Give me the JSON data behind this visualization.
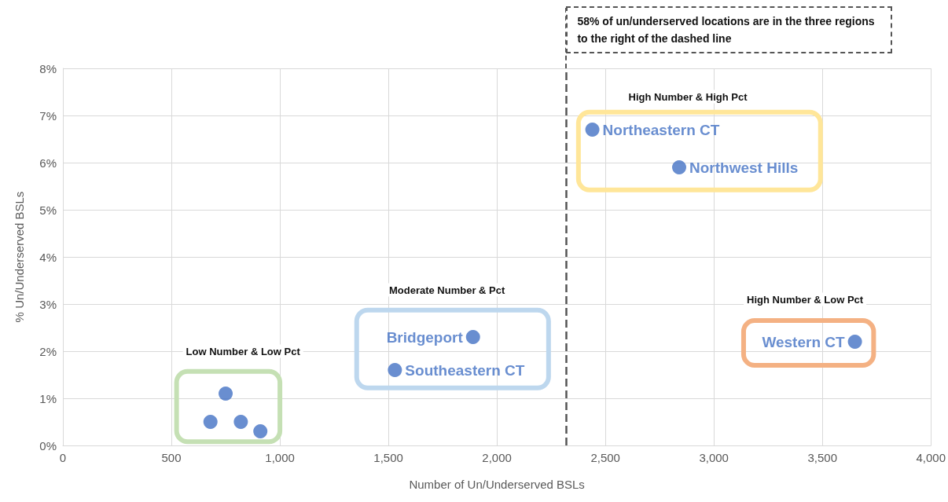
{
  "chart_data": {
    "type": "scatter",
    "xlabel": "Number of Un/Underserved BSLs",
    "ylabel": "% Un/Underserved BSLs",
    "series": [
      {
        "name": "Northeastern CT",
        "color": "#4472c4",
        "x": [
          2440
        ],
        "values": [
          6.7
        ]
      },
      {
        "name": "Northwest Hills",
        "color": "#4472c4",
        "x": [
          2840
        ],
        "values": [
          5.9
        ]
      },
      {
        "name": "Bridgeport",
        "color": "#4472c4",
        "x": [
          1890
        ],
        "values": [
          2.3
        ]
      },
      {
        "name": "Southeastern CT",
        "color": "#4472c4",
        "x": [
          1530
        ],
        "values": [
          1.6
        ]
      },
      {
        "name": "Western CT",
        "color": "#4472c4",
        "x": [
          3650
        ],
        "values": [
          2.2
        ]
      },
      {
        "color": "#4472c4",
        "x": [
          750,
          680,
          820,
          910
        ],
        "values": [
          1.1,
          0.5,
          0.5,
          0.3
        ]
      }
    ],
    "xlim": [
      0,
      4000
    ],
    "xticks": [
      {
        "value": 0,
        "label": "0"
      },
      {
        "value": 500,
        "label": "500"
      },
      {
        "value": 1000,
        "label": "1,000"
      },
      {
        "value": 1500,
        "label": "1,500"
      },
      {
        "value": 2000,
        "label": "2,000"
      },
      {
        "value": 2500,
        "label": "2,500"
      },
      {
        "value": 3000,
        "label": "3,000"
      },
      {
        "value": 3500,
        "label": "3,500"
      },
      {
        "value": 4000,
        "label": "4,000"
      }
    ],
    "ylim": [
      0,
      8
    ],
    "yticks": [
      {
        "value": 0,
        "label": "0%"
      },
      {
        "value": 1,
        "label": "1%"
      },
      {
        "value": 2,
        "label": "2%"
      },
      {
        "value": 3,
        "label": "3%"
      },
      {
        "value": 4,
        "label": "4%"
      },
      {
        "value": 5,
        "label": "5%"
      },
      {
        "value": 6,
        "label": "6%"
      },
      {
        "value": 7,
        "label": "7%"
      },
      {
        "value": 8,
        "label": "8%"
      }
    ],
    "ref_lines": [
      {
        "axis": "x",
        "value": 2320,
        "label": "58% of un/underserved locations are in the three regions to the right of the dashed line",
        "line_style": "dashed",
        "color": "#555555"
      }
    ],
    "annotations": [
      "Low Number & Low Pct",
      "Moderate Number & Pct",
      "High Number & High Pct",
      "High Number & Low Pct"
    ],
    "grid": true,
    "legend": false,
    "marker": "circle"
  }
}
